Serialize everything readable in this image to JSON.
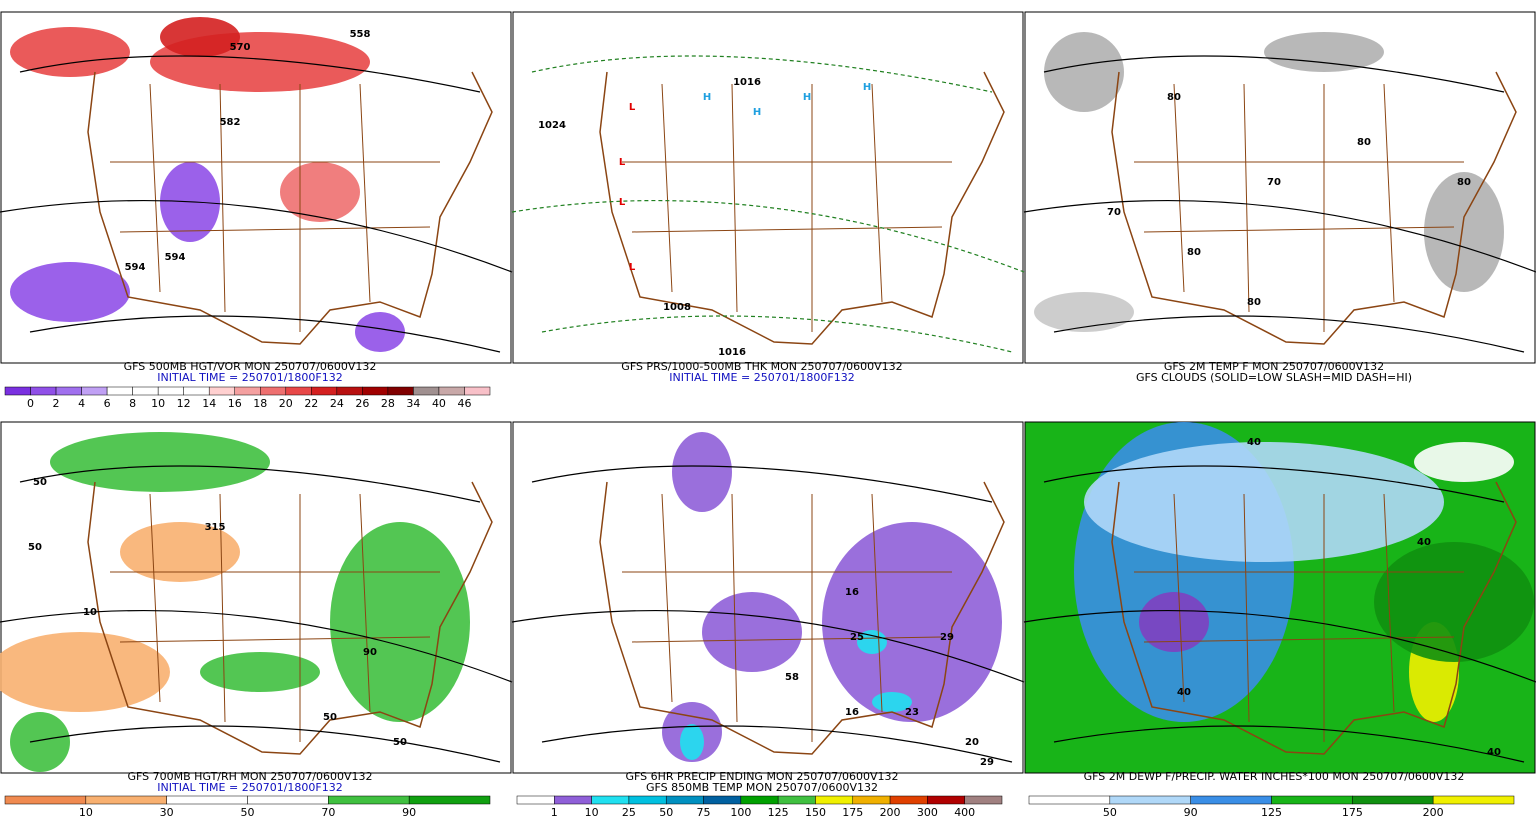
{
  "panels": [
    {
      "caption": [
        "GFS 500MB HGT/VOR MON 250707/0600V132",
        "INITIAL TIME = 250701/1800F132"
      ],
      "caption_colors": [
        "#000000",
        "#1010c0"
      ],
      "colorbar": {
        "labels": [
          "0",
          "2",
          "4",
          "6",
          "8",
          "10",
          "12",
          "14",
          "16",
          "18",
          "20",
          "22",
          "24",
          "26",
          "28",
          "34",
          "40",
          "46"
        ],
        "colors": [
          "#7a30e0",
          "#9050e8",
          "#a070ee",
          "#c0a0f4",
          "#ffffff",
          "#ffffff",
          "#ffffff",
          "#ffffff",
          "#ffd0d0",
          "#f4a0a0",
          "#ee7070",
          "#e84848",
          "#d42020",
          "#b81010",
          "#a00000",
          "#800000",
          "#a09090",
          "#c8a8a8",
          "#f8c0c8"
        ]
      },
      "map_labels": [
        "570",
        "558",
        "582",
        "594",
        "594"
      ]
    },
    {
      "caption": [
        "GFS PRS/1000-500MB THK MON 250707/0600V132",
        "INITIAL TIME = 250701/1800F132"
      ],
      "caption_colors": [
        "#000000",
        "#1010c0"
      ],
      "map_labels": [
        "L",
        "L",
        "L",
        "L",
        "H",
        "H",
        "H",
        "H",
        "1024",
        "1016",
        "1008",
        "1016"
      ]
    },
    {
      "caption": [
        "GFS 2M TEMP F MON 250707/0600V132",
        "GFS CLOUDS (SOLID=LOW SLASH=MID DASH=HI)"
      ],
      "caption_colors": [
        "#000000",
        "#000000"
      ],
      "map_labels": [
        "80",
        "70",
        "80",
        "80",
        "70",
        "80",
        "80"
      ]
    },
    {
      "caption": [
        "GFS 700MB HGT/RH MON 250707/0600V132",
        "INITIAL TIME = 250701/1800F132"
      ],
      "caption_colors": [
        "#000000",
        "#1010c0"
      ],
      "colorbar": {
        "labels": [
          "10",
          "30",
          "50",
          "70",
          "90"
        ],
        "colors": [
          "#f08a50",
          "#f8b070",
          "#ffffff",
          "#ffffff",
          "#40c040",
          "#10a010"
        ]
      },
      "map_labels": [
        "50",
        "10",
        "50",
        "315",
        "50",
        "90",
        "50"
      ]
    },
    {
      "caption": [
        "GFS 6HR PRECIP ENDING MON 250707/0600V132",
        "GFS 850MB TEMP MON 250707/0600V132"
      ],
      "caption_colors": [
        "#000000",
        "#000000"
      ],
      "colorbar": {
        "labels": [
          "1",
          "10",
          "25",
          "50",
          "75",
          "100",
          "125",
          "150",
          "175",
          "200",
          "300",
          "400"
        ],
        "colors": [
          "#ffffff",
          "#8f5fd8",
          "#20e0f0",
          "#00c0e0",
          "#0090c0",
          "#0060a0",
          "#00a000",
          "#40c040",
          "#f0f000",
          "#f0b000",
          "#e04000",
          "#b00000",
          "#a08080"
        ]
      },
      "map_labels": [
        "16",
        "25",
        "29",
        "58",
        "23",
        "16",
        "20",
        "29"
      ]
    },
    {
      "caption": [
        "GFS 2M DEWP F/PRECIP. WATER INCHES*100 MON 250707/0600V132"
      ],
      "caption_colors": [
        "#000000"
      ],
      "colorbar": {
        "labels": [
          "50",
          "90",
          "125",
          "175",
          "200"
        ],
        "colors": [
          "#ffffff",
          "#b0d8f8",
          "#3a8ee6",
          "#18b418",
          "#109010",
          "#f0f000"
        ]
      },
      "map_labels": [
        "40",
        "40",
        "40",
        "40"
      ]
    }
  ]
}
